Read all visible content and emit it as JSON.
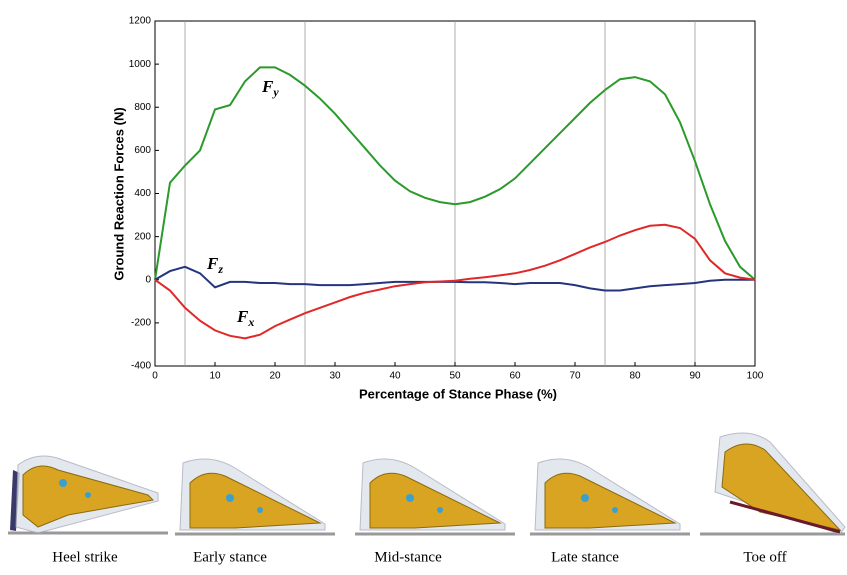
{
  "chart_data": {
    "type": "line",
    "xlabel": "Percentage of Stance Phase (%)",
    "ylabel": "Ground Reaction Forces (N)",
    "x": [
      0,
      2.5,
      5,
      7.5,
      10,
      12.5,
      15,
      17.5,
      20,
      22.5,
      25,
      27.5,
      30,
      32.5,
      35,
      37.5,
      40,
      42.5,
      45,
      47.5,
      50,
      52.5,
      55,
      57.5,
      60,
      62.5,
      65,
      67.5,
      70,
      72.5,
      75,
      77.5,
      80,
      82.5,
      85,
      87.5,
      90,
      92.5,
      95,
      97.5,
      100
    ],
    "series": [
      {
        "name": "Fy",
        "color": "#2a9a2a",
        "values": [
          0,
          450,
          530,
          600,
          790,
          810,
          920,
          985,
          985,
          950,
          900,
          840,
          770,
          690,
          610,
          530,
          460,
          410,
          380,
          360,
          350,
          360,
          385,
          420,
          470,
          540,
          610,
          680,
          750,
          820,
          880,
          930,
          940,
          920,
          860,
          730,
          550,
          350,
          180,
          60,
          0
        ]
      },
      {
        "name": "Fz",
        "color": "#24357e",
        "values": [
          0,
          40,
          60,
          30,
          -35,
          -10,
          -10,
          -15,
          -15,
          -20,
          -20,
          -25,
          -25,
          -25,
          -20,
          -15,
          -10,
          -10,
          -10,
          -10,
          -10,
          -12,
          -12,
          -15,
          -20,
          -15,
          -15,
          -15,
          -25,
          -40,
          -50,
          -50,
          -40,
          -30,
          -25,
          -20,
          -15,
          -5,
          0,
          0,
          0
        ]
      },
      {
        "name": "Fx",
        "color": "#e02828",
        "values": [
          0,
          -50,
          -130,
          -190,
          -235,
          -260,
          -272,
          -255,
          -215,
          -185,
          -155,
          -130,
          -105,
          -80,
          -60,
          -45,
          -30,
          -20,
          -12,
          -8,
          -5,
          5,
          12,
          20,
          30,
          45,
          65,
          90,
          120,
          150,
          175,
          205,
          230,
          250,
          255,
          240,
          190,
          90,
          30,
          10,
          0
        ]
      }
    ],
    "phase_lines": [
      5,
      25,
      50,
      75,
      90
    ],
    "xlim": [
      0,
      100
    ],
    "xticks": [
      0,
      10,
      20,
      30,
      40,
      50,
      60,
      70,
      80,
      90,
      100
    ],
    "ylim": [
      -400,
      1200
    ],
    "yticks": [
      -400,
      -200,
      0,
      200,
      400,
      600,
      800,
      1000,
      1200
    ],
    "grid": false
  },
  "phases": [
    "Heel strike",
    "Early stance",
    "Mid-stance",
    "Late stance",
    "Toe off"
  ]
}
